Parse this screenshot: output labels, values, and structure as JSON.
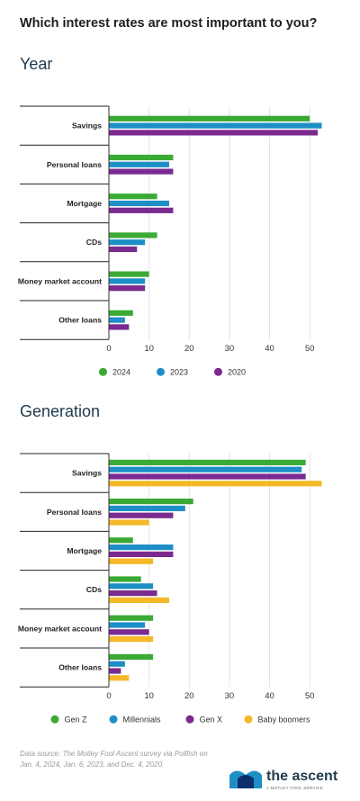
{
  "title": "Which interest rates are most important to you?",
  "footer": {
    "source": "Data source: The Motley Fool Ascent survey via Pollfish on  Jan. 4, 2024, Jan. 6, 2023, and Dec. 4, 2020.",
    "brand": "the ascent",
    "brand_sub": "A MOTLEY FOOL SERVICE"
  },
  "chart_data": [
    {
      "type": "bar",
      "orientation": "horizontal",
      "title": "Year",
      "categories": [
        "Savings",
        "Personal loans",
        "Mortgage",
        "CDs",
        "Money market account",
        "Other loans"
      ],
      "series": [
        {
          "name": "2024",
          "color": "#3aaa35",
          "values": [
            50,
            16,
            12,
            12,
            10,
            6
          ]
        },
        {
          "name": "2023",
          "color": "#1e8fc6",
          "values": [
            53,
            15,
            15,
            9,
            9,
            4
          ]
        },
        {
          "name": "2020",
          "color": "#7b2a8f",
          "values": [
            52,
            16,
            16,
            7,
            9,
            5
          ]
        }
      ],
      "xticks": [
        "0",
        "10",
        "20",
        "30",
        "40",
        "50"
      ],
      "xlim": [
        0,
        54
      ],
      "grid": true,
      "legend": "bottom"
    },
    {
      "type": "bar",
      "orientation": "horizontal",
      "title": "Generation",
      "categories": [
        "Savings",
        "Personal loans",
        "Mortgage",
        "CDs",
        "Money market account",
        "Other loans"
      ],
      "series": [
        {
          "name": "Gen Z",
          "color": "#3aaa35",
          "values": [
            49,
            21,
            6,
            8,
            11,
            11
          ]
        },
        {
          "name": "Millennials",
          "color": "#1e8fc6",
          "values": [
            48,
            19,
            16,
            11,
            9,
            4
          ]
        },
        {
          "name": "Gen X",
          "color": "#7b2a8f",
          "values": [
            49,
            16,
            16,
            12,
            10,
            3
          ]
        },
        {
          "name": "Baby boomers",
          "color": "#f5b829",
          "values": [
            53,
            10,
            11,
            15,
            11,
            5
          ]
        }
      ],
      "xticks": [
        "0",
        "10",
        "20",
        "30",
        "40",
        "50"
      ],
      "xlim": [
        0,
        54
      ],
      "grid": true,
      "legend": "bottom"
    }
  ]
}
